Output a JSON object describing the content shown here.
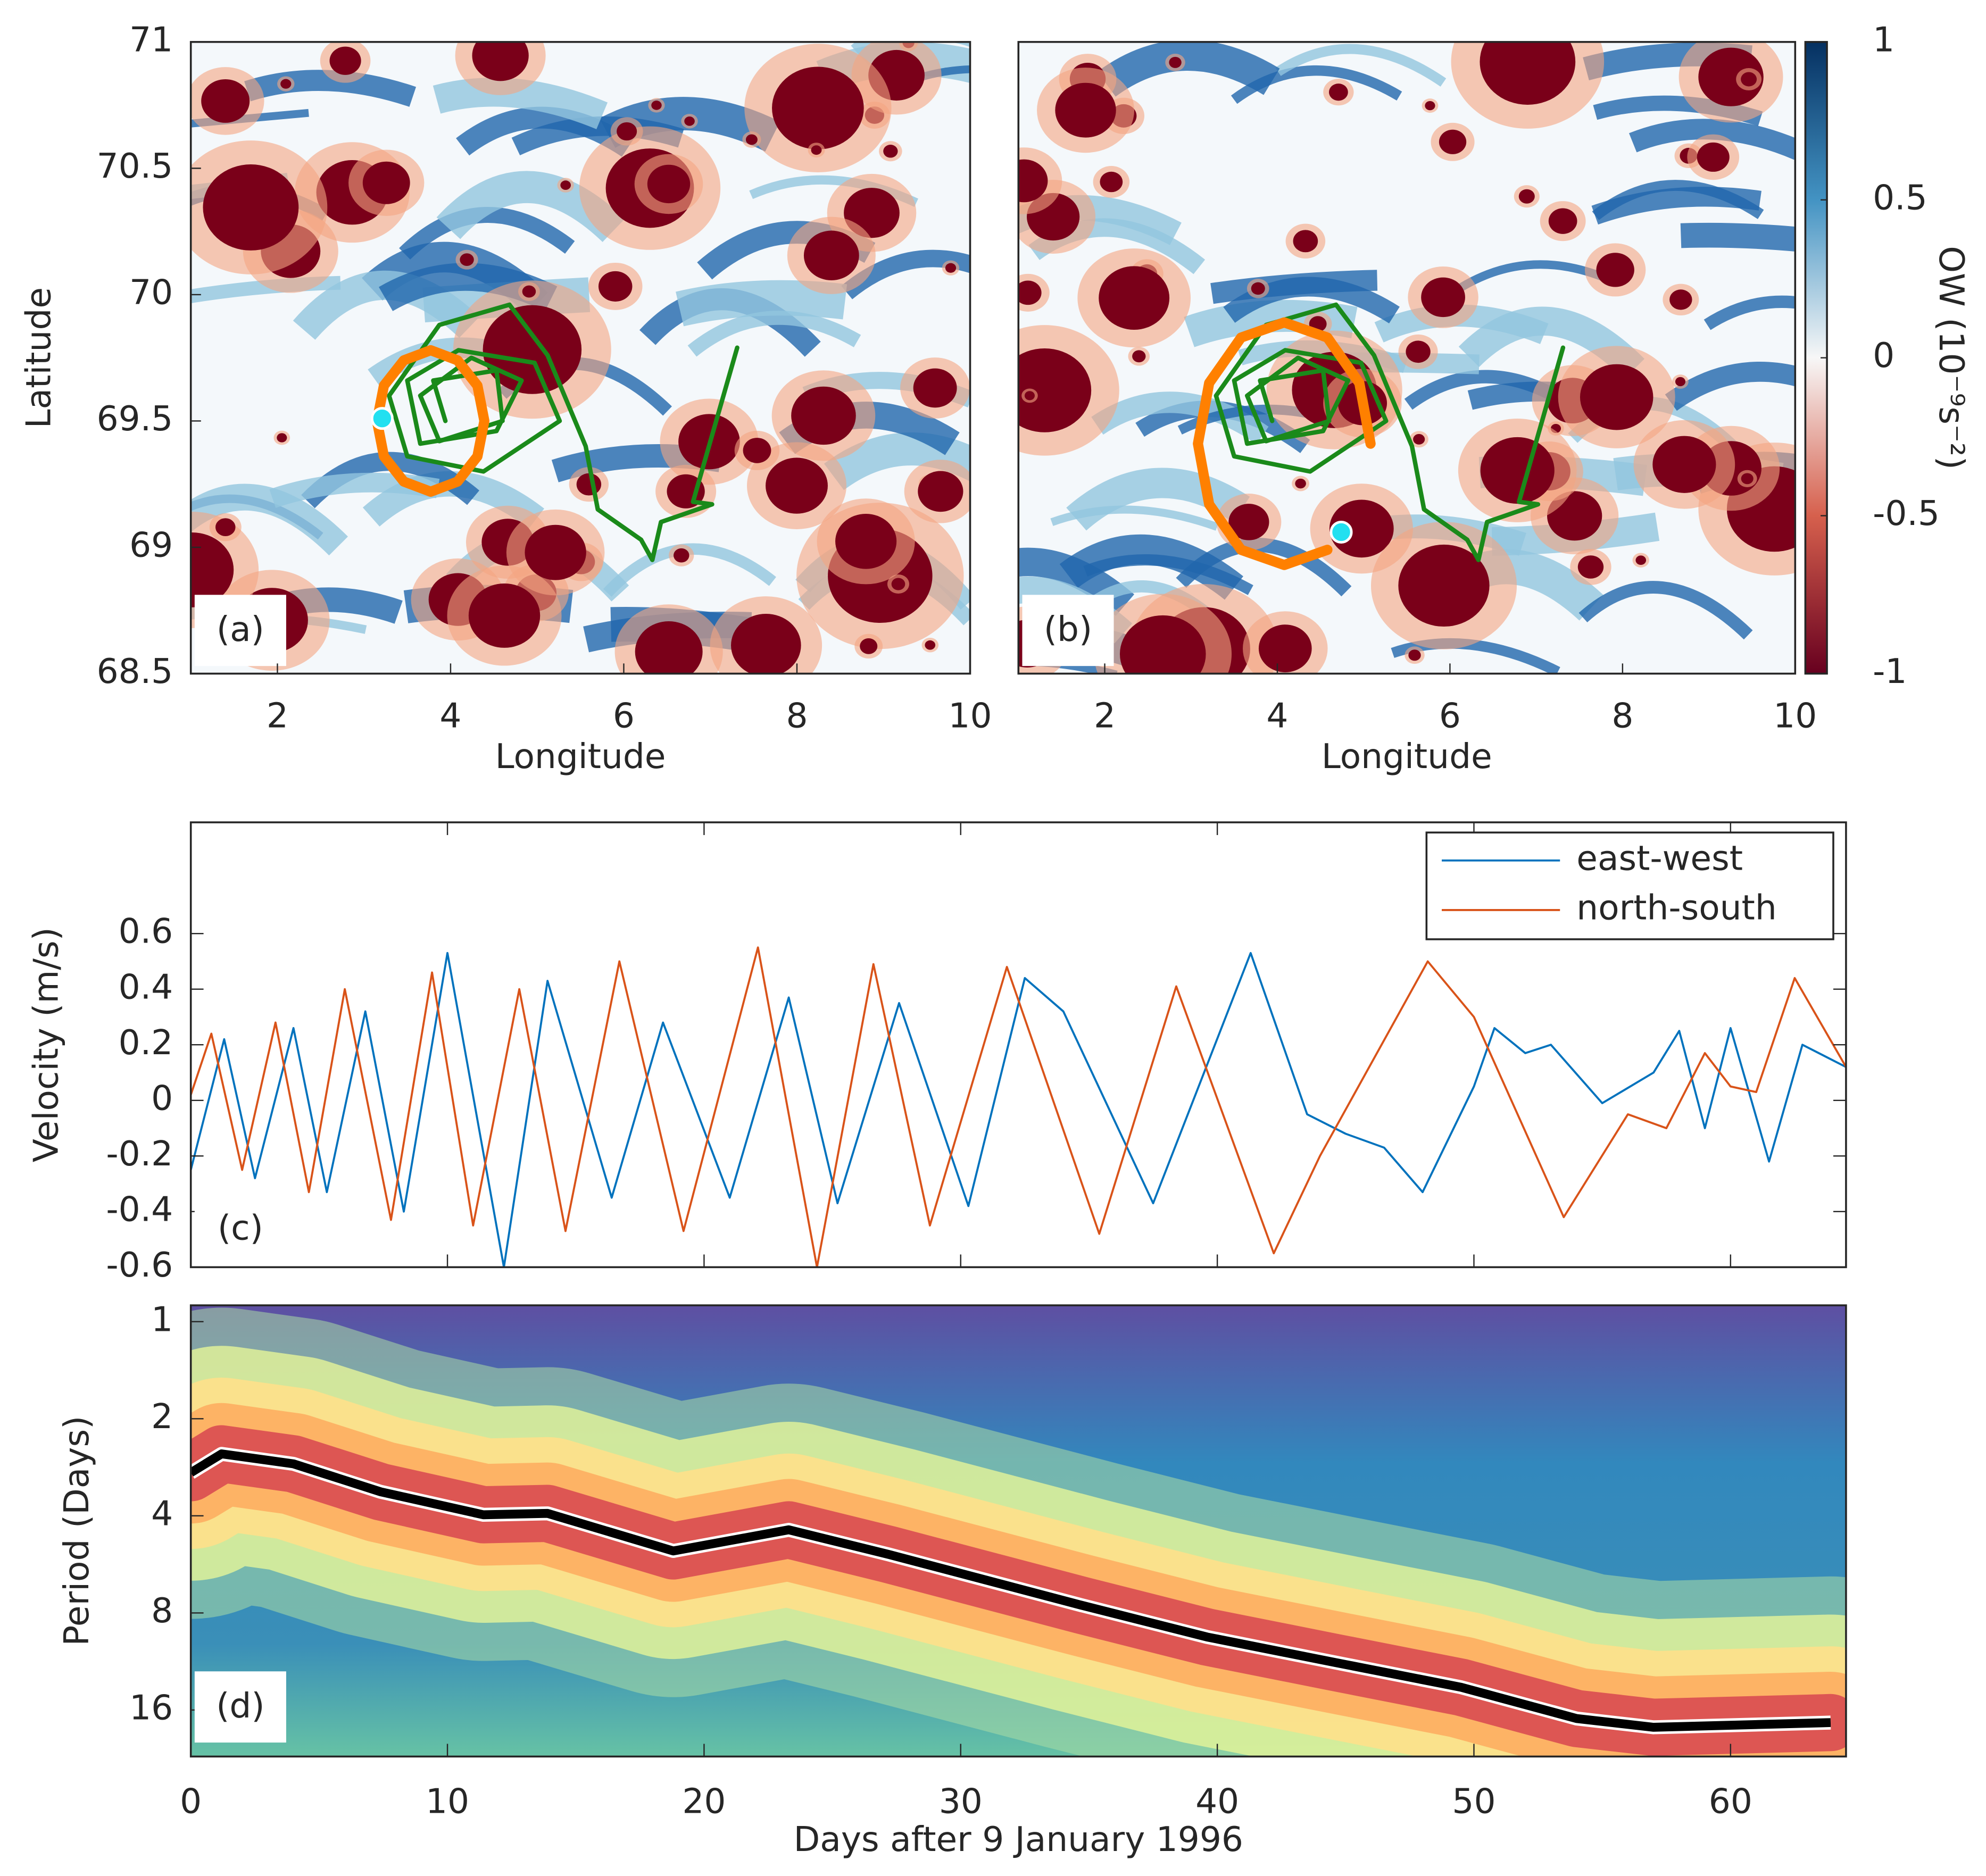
{
  "chart_data": [
    {
      "type": "map",
      "panel_label": "(a)",
      "xlabel": "Longitude",
      "ylabel": "Latitude",
      "xlim": [
        1,
        10
      ],
      "ylim": [
        68.5,
        71
      ],
      "xticks": [
        2,
        4,
        6,
        8,
        10
      ],
      "yticks": [
        68.5,
        69,
        69.5,
        70,
        70.5,
        71
      ],
      "tracks": [
        {
          "color": "#1a8a1a",
          "x": [
            7.31,
            6.8,
            7.02,
            6.43,
            6.33,
            6.2,
            5.7,
            5.56,
            5.12,
            4.68,
            3.87,
            3.29,
            3.5,
            4.38,
            5.26,
            4.97,
            4.09,
            3.5,
            3.65,
            4.53,
            4.82,
            4.24,
            3.65,
            3.87,
            4.6,
            4.53,
            3.8,
            3.94
          ],
          "y": [
            69.79,
            69.18,
            69.17,
            69.1,
            68.95,
            69.03,
            69.15,
            69.4,
            69.76,
            69.96,
            69.88,
            69.6,
            69.36,
            69.3,
            69.5,
            69.73,
            69.78,
            69.66,
            69.41,
            69.46,
            69.66,
            69.75,
            69.6,
            69.42,
            69.5,
            69.7,
            69.66,
            69.5
          ]
        },
        {
          "color": "#ff8000",
          "x": [
            4.39,
            4.31,
            4.08,
            3.77,
            3.46,
            3.23,
            3.15,
            3.23,
            3.46,
            3.77,
            4.08,
            4.31,
            4.39
          ],
          "y": [
            69.5,
            69.64,
            69.74,
            69.78,
            69.74,
            69.64,
            69.5,
            69.36,
            69.26,
            69.22,
            69.26,
            69.36,
            69.5
          ]
        }
      ],
      "points": [
        {
          "color": "#22e0f0",
          "x": [
            3.21
          ],
          "y": [
            69.51
          ]
        }
      ]
    },
    {
      "type": "map",
      "panel_label": "(b)",
      "xlabel": "Longitude",
      "xlim": [
        1,
        10
      ],
      "ylim": [
        68.5,
        71
      ],
      "xticks": [
        2,
        4,
        6,
        8,
        10
      ],
      "tracks": [
        {
          "color": "#1a8a1a",
          "x": [
            7.31,
            6.8,
            7.02,
            6.43,
            6.33,
            6.2,
            5.7,
            5.56,
            5.12,
            4.68,
            3.87,
            3.29,
            3.5,
            4.38,
            5.26,
            4.97,
            4.09,
            3.5,
            3.65,
            4.53,
            4.82,
            4.24,
            3.65,
            3.87,
            4.6,
            4.53,
            3.8,
            3.94
          ],
          "y": [
            69.79,
            69.18,
            69.17,
            69.1,
            68.95,
            69.03,
            69.15,
            69.4,
            69.76,
            69.96,
            69.88,
            69.6,
            69.36,
            69.3,
            69.5,
            69.73,
            69.78,
            69.66,
            69.41,
            69.46,
            69.66,
            69.75,
            69.6,
            69.42,
            69.5,
            69.7,
            69.66,
            69.5
          ]
        },
        {
          "color": "#ff8000",
          "x": [
            5.08,
            4.95,
            4.58,
            4.08,
            3.58,
            3.21,
            3.08,
            3.21,
            3.58,
            4.08,
            4.58
          ],
          "y": [
            69.41,
            69.65,
            69.83,
            69.89,
            69.83,
            69.65,
            69.41,
            69.17,
            68.99,
            68.93,
            68.99
          ]
        }
      ],
      "points": [
        {
          "color": "#22e0f0",
          "x": [
            4.74
          ],
          "y": [
            69.06
          ]
        }
      ],
      "colorbar": {
        "label": "OW (10⁻⁹s⁻²)",
        "lim": [
          -1,
          1
        ],
        "ticks": [
          -1,
          -0.5,
          0,
          0.5,
          1
        ]
      }
    },
    {
      "type": "line",
      "panel_label": "(c)",
      "ylabel": "Velocity (m/s)",
      "xlim": [
        0,
        64.5
      ],
      "ylim": [
        -0.6,
        1
      ],
      "yticks": [
        -0.6,
        -0.4,
        -0.2,
        0,
        0.2,
        0.4,
        0.6
      ],
      "legend": "northeast",
      "series": [
        {
          "name": "east-west",
          "color": "#0072bd",
          "x": [
            0,
            1.3,
            2.5,
            4,
            5.3,
            6.8,
            8.3,
            10,
            12.2,
            13.9,
            16.4,
            18.4,
            21,
            23.3,
            25.2,
            27.6,
            30.3,
            32.5,
            34,
            37.5,
            41.3,
            43.5,
            45,
            46.5,
            48,
            50,
            50.8,
            52,
            53,
            55,
            57,
            58,
            59,
            60,
            61.5,
            62.8,
            64.5
          ],
          "values": [
            -0.25,
            0.22,
            -0.28,
            0.26,
            -0.33,
            0.32,
            -0.4,
            0.53,
            -0.6,
            0.43,
            -0.35,
            0.28,
            -0.35,
            0.37,
            -0.37,
            0.35,
            -0.38,
            0.44,
            0.32,
            -0.37,
            0.53,
            -0.05,
            -0.12,
            -0.17,
            -0.33,
            0.05,
            0.26,
            0.17,
            0.2,
            -0.01,
            0.1,
            0.25,
            -0.1,
            0.26,
            -0.22,
            0.2,
            0.12
          ]
        },
        {
          "name": "north-south",
          "color": "#d95319",
          "x": [
            0,
            0.8,
            2,
            3.3,
            4.6,
            6,
            7.8,
            9.4,
            11,
            12.8,
            14.6,
            16.7,
            19.2,
            22.1,
            24.4,
            26.6,
            28.8,
            31.8,
            35.4,
            38.4,
            42.2,
            44,
            48.2,
            50,
            53.5,
            56,
            57.5,
            59,
            60,
            61,
            62.5,
            64.5
          ],
          "values": [
            0.02,
            0.24,
            -0.25,
            0.28,
            -0.33,
            0.4,
            -0.43,
            0.46,
            -0.45,
            0.4,
            -0.47,
            0.5,
            -0.47,
            0.55,
            -0.6,
            0.49,
            -0.45,
            0.48,
            -0.48,
            0.41,
            -0.55,
            -0.2,
            0.5,
            0.3,
            -0.42,
            -0.05,
            -0.1,
            0.17,
            0.05,
            0.03,
            0.44,
            0.12
          ]
        }
      ]
    },
    {
      "type": "wavelet",
      "panel_label": "(d)",
      "xlabel": "Days after 9 January 1996",
      "ylabel": "Period (Days)",
      "xlim": [
        0,
        64.5
      ],
      "ylim": [
        0.89,
        22.3
      ],
      "log_y": true,
      "y_reversed": true,
      "xticks": [
        0,
        10,
        20,
        30,
        40,
        50,
        60
      ],
      "yticks": [
        1,
        2,
        4,
        8,
        16
      ],
      "ridge": {
        "color": "#000000",
        "x": [
          0,
          1.2,
          4,
          7.4,
          11.4,
          13.9,
          18.8,
          23.3,
          27.2,
          34.7,
          39.6,
          44.6,
          49.5,
          54,
          57,
          63.9
        ],
        "y": [
          2.94,
          2.57,
          2.76,
          3.37,
          3.97,
          3.93,
          5.14,
          4.42,
          5.27,
          7.57,
          9.5,
          11.4,
          13.6,
          17,
          18.1,
          17.5
        ]
      }
    }
  ]
}
